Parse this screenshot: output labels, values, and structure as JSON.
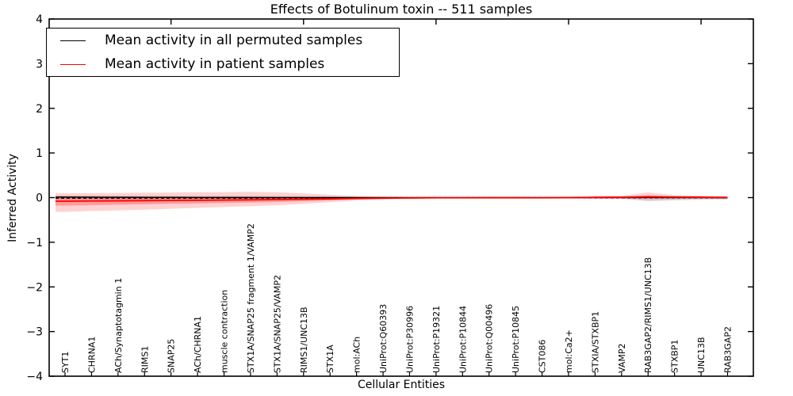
{
  "title": "Effects of Botulinum toxin -- 511 samples",
  "axes": {
    "xlabel": "Cellular Entities",
    "ylabel": "Inferred Activity"
  },
  "legend": {
    "items": [
      {
        "label": "Mean activity in all permuted samples",
        "color": "#000000"
      },
      {
        "label": "Mean activity in patient samples",
        "color": "#ff0000"
      }
    ],
    "position": "upper left"
  },
  "colors": {
    "permuted_line": "#000000",
    "patient_line": "#ff0000",
    "patient_band": "#ff3333",
    "permuted_band": "#999999",
    "axis": "#000000"
  },
  "chart_data": {
    "type": "line",
    "title": "Effects of Botulinum toxin -- 511 samples",
    "xlabel": "Cellular Entities",
    "ylabel": "Inferred Activity",
    "ylim": [
      -4,
      4
    ],
    "yticks": [
      4,
      3,
      2,
      1,
      0,
      -1,
      -2,
      -3,
      -4
    ],
    "grid": false,
    "legend_position": "upper left",
    "categories": [
      "SYT1",
      "CHRNA1",
      "ACh/Synaptotagmin 1",
      "RIMS1",
      "SNAP25",
      "ACh/CHRNA1",
      "muscle contraction",
      "STX1A/SNAP25 fragment 1/VAMP2",
      "STX1A/SNAP25/VAMP2",
      "RIMS1/UNC13B",
      "STX1A",
      "mol:ACh",
      "UniProt:Q60393",
      "UniProt:P30996",
      "UniProt:P19321",
      "UniProt:P10844",
      "UniProt:Q00496",
      "UniProt:P10845",
      "CST086",
      "mol:Ca2+",
      "STXIA/STXBP1",
      "VAMP2",
      "RAB3GAP2/RIMS1/UNC13B",
      "STXBP1",
      "UNC13B",
      "RAB3GAP2"
    ],
    "series": [
      {
        "name": "Mean activity in all permuted samples",
        "color": "#000000",
        "style": "solid",
        "values": [
          0.01,
          0.008,
          0.006,
          0.005,
          0.004,
          0.003,
          0.002,
          0.002,
          0.001,
          0.001,
          0,
          0,
          0,
          0,
          0,
          0,
          0,
          0,
          0,
          0,
          0.002,
          0.003,
          0.005,
          0.003,
          0.002,
          0.001
        ]
      },
      {
        "name": "dashed-reference-line",
        "color": "#000000",
        "style": "dashed",
        "values": [
          -0.01,
          -0.01,
          -0.01,
          -0.01,
          -0.01,
          -0.01,
          -0.01,
          -0.01,
          -0.008,
          -0.006,
          -0.005,
          -0.004,
          -0.003,
          -0.002,
          -0.002,
          -0.002,
          -0.002,
          -0.002,
          -0.002,
          -0.002,
          -0.002,
          -0.002,
          -0.002,
          -0.002,
          -0.002,
          -0.002
        ]
      },
      {
        "name": "Mean activity in patient samples",
        "color": "#ff0000",
        "style": "solid",
        "values": [
          -0.08,
          -0.075,
          -0.072,
          -0.068,
          -0.064,
          -0.06,
          -0.055,
          -0.05,
          -0.044,
          -0.037,
          -0.03,
          -0.02,
          -0.012,
          -0.008,
          -0.005,
          -0.004,
          -0.003,
          -0.003,
          -0.004,
          -0.002,
          0.004,
          0.008,
          0.018,
          0.012,
          0.008,
          0.002
        ]
      }
    ],
    "bands": [
      {
        "name": "permuted-std-band",
        "color": "#999999",
        "opacity": 0.4,
        "upper": [
          0.045,
          0.042,
          0.04,
          0.04,
          0.038,
          0.036,
          0.035,
          0.032,
          0.03,
          0.03,
          0.026,
          0.02,
          0.016,
          0.012,
          0.01,
          0.01,
          0.009,
          0.009,
          0.01,
          0.013,
          0.02,
          0.024,
          0.03,
          0.022,
          0.035,
          0.03
        ],
        "lower": [
          -0.045,
          -0.042,
          -0.04,
          -0.04,
          -0.038,
          -0.036,
          -0.035,
          -0.032,
          -0.03,
          -0.03,
          -0.026,
          -0.02,
          -0.016,
          -0.012,
          -0.01,
          -0.01,
          -0.009,
          -0.009,
          -0.01,
          -0.013,
          -0.02,
          -0.024,
          -0.08,
          -0.06,
          -0.045,
          -0.035
        ]
      },
      {
        "name": "patient-std-outer-band",
        "color": "#ff3333",
        "opacity": 0.22,
        "upper": [
          0.1,
          0.1,
          0.105,
          0.11,
          0.115,
          0.12,
          0.125,
          0.13,
          0.12,
          0.095,
          0.065,
          0.035,
          0.02,
          0.012,
          0.01,
          0.01,
          0.01,
          0.01,
          0.012,
          0.02,
          0.045,
          0.04,
          0.115,
          0.055,
          0.04,
          0.03
        ],
        "lower": [
          -0.32,
          -0.3,
          -0.285,
          -0.27,
          -0.25,
          -0.23,
          -0.21,
          -0.19,
          -0.17,
          -0.14,
          -0.105,
          -0.065,
          -0.04,
          -0.025,
          -0.015,
          -0.012,
          -0.012,
          -0.012,
          -0.015,
          -0.02,
          -0.025,
          -0.025,
          -0.04,
          -0.03,
          -0.025,
          -0.03
        ]
      },
      {
        "name": "patient-std-inner-band",
        "color": "#ff2222",
        "opacity": 0.3,
        "upper": [
          0.02,
          0.02,
          0.02,
          0.018,
          0.016,
          0.014,
          0.012,
          0.012,
          0.01,
          0.005,
          0.002,
          0.002,
          0.002,
          0.002,
          0.002,
          0.002,
          0.002,
          0.002,
          0.003,
          0.006,
          0.015,
          0.014,
          0.05,
          0.02,
          0.015,
          0.012
        ],
        "lower": [
          -0.18,
          -0.17,
          -0.16,
          -0.15,
          -0.14,
          -0.13,
          -0.12,
          -0.11,
          -0.1,
          -0.08,
          -0.06,
          -0.04,
          -0.022,
          -0.014,
          -0.008,
          -0.007,
          -0.007,
          -0.007,
          -0.008,
          -0.01,
          -0.014,
          -0.014,
          -0.022,
          -0.016,
          -0.013,
          -0.015
        ]
      }
    ]
  }
}
